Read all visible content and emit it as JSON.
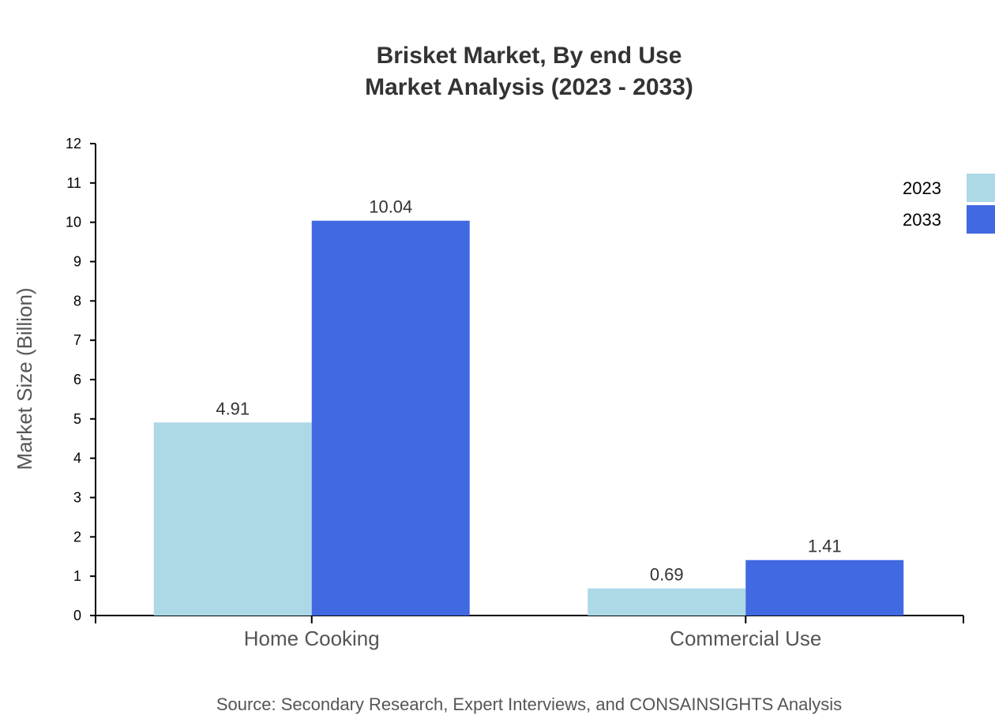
{
  "chart_data": {
    "type": "bar",
    "title": "Brisket Market, By end Use",
    "subtitle": "Market Analysis (2023 - 2033)",
    "xlabel": "",
    "ylabel": "Market Size (Billion)",
    "ylim": [
      0,
      12
    ],
    "yticks": [
      0,
      1,
      2,
      3,
      4,
      5,
      6,
      7,
      8,
      9,
      10,
      11,
      12
    ],
    "categories": [
      "Home Cooking",
      "Commercial Use"
    ],
    "series": [
      {
        "name": "2023",
        "values": [
          4.91,
          0.69
        ],
        "color": "#add8e6"
      },
      {
        "name": "2033",
        "values": [
          10.04,
          1.41
        ],
        "color": "#4169e1"
      }
    ],
    "legend_position": "top-right",
    "grid": false,
    "source": "Source: Secondary Research, Expert Interviews, and CONSAINSIGHTS Analysis"
  }
}
